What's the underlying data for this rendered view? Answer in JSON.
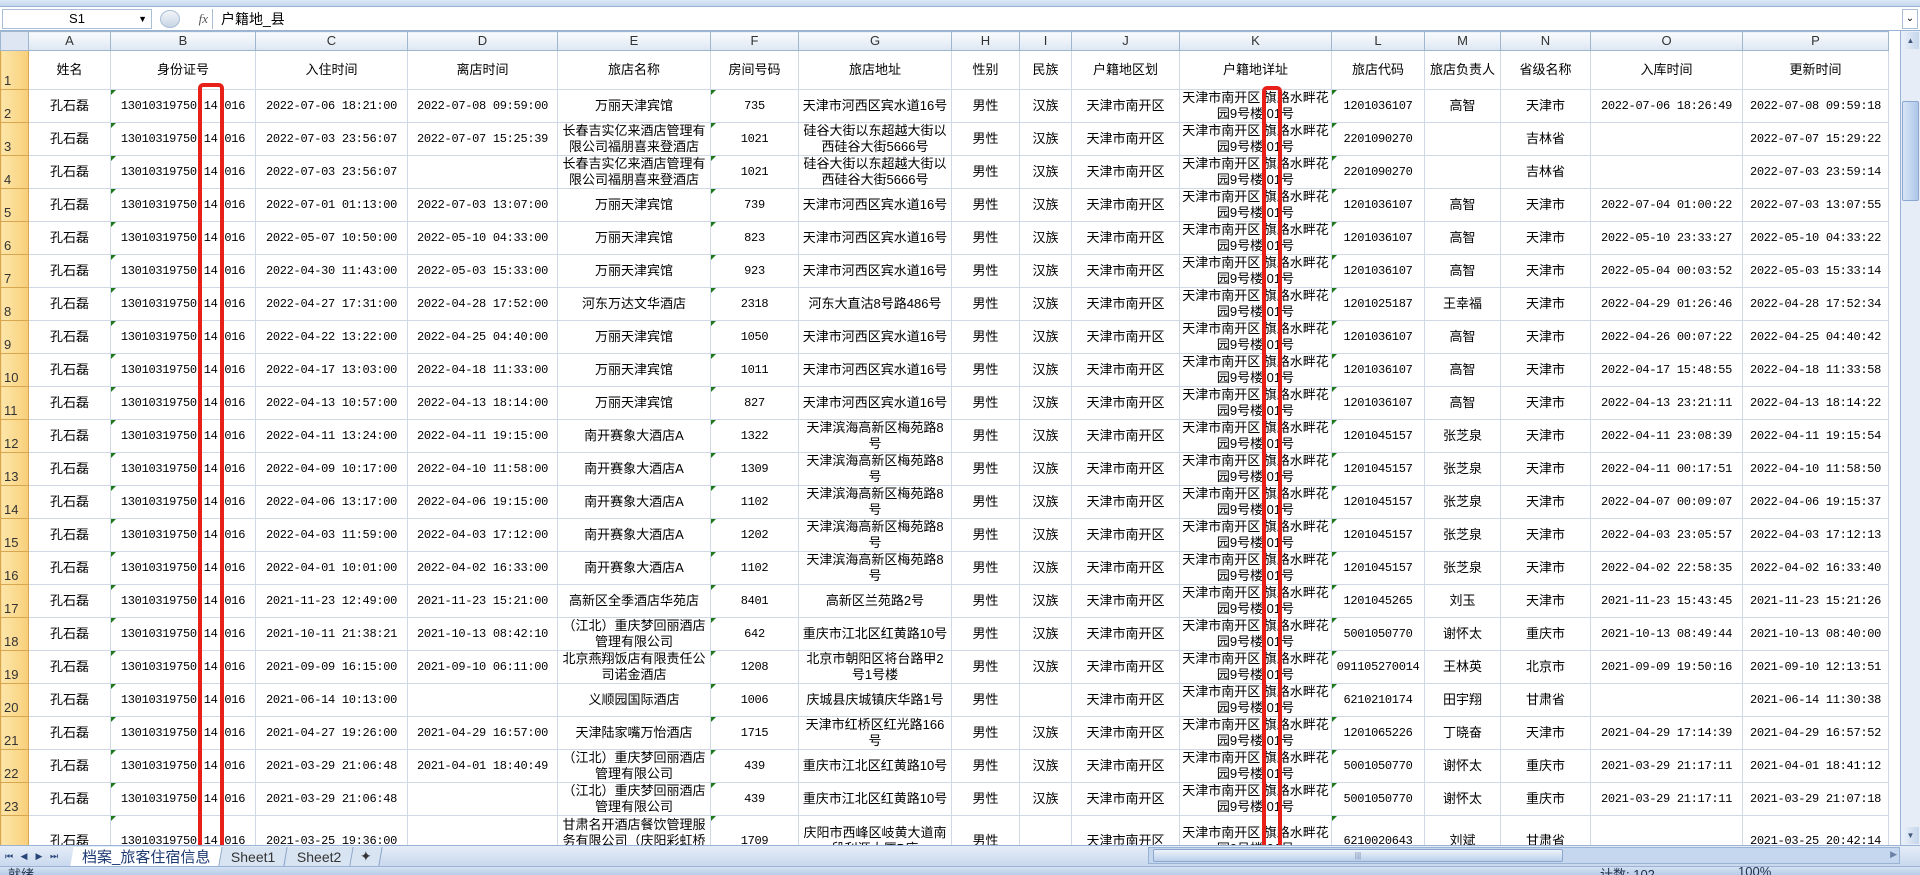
{
  "formula_bar": {
    "name_box": "S1",
    "fx_label": "fx",
    "formula": "户籍地_县"
  },
  "columns": [
    "A",
    "B",
    "C",
    "D",
    "E",
    "F",
    "G",
    "H",
    "I",
    "J",
    "K",
    "L",
    "M",
    "N",
    "O",
    "P"
  ],
  "headers": [
    "姓名",
    "身份证号",
    "入住时间",
    "离店时间",
    "旅店名称",
    "房间号码",
    "旅店地址",
    "性别",
    "民族",
    "户籍地区划",
    "户籍地详址",
    "旅店代码",
    "旅店负责人",
    "省级名称",
    "入库时间",
    "更新时间"
  ],
  "rows": [
    [
      "孔石磊",
      "13010319750 14 016",
      "2022-07-06 18:21:00",
      "2022-07-08 09:59:00",
      "万丽天津宾馆",
      "735",
      "天津市河西区宾水道16号",
      "男性",
      "汉族",
      "天津市南开区",
      "天津市南开区 旗路水畔花园9号楼 01号",
      "1201036107",
      "高智",
      "天津市",
      "2022-07-06 18:26:49",
      "2022-07-08 09:59:18"
    ],
    [
      "孔石磊",
      "13010319750 14 016",
      "2022-07-03 23:56:07",
      "2022-07-07 15:25:39",
      "长春吉实亿来酒店管理有限公司福朋喜来登酒店",
      "1021",
      "硅谷大街以东超越大街以西硅谷大街5666号",
      "男性",
      "汉族",
      "天津市南开区",
      "天津市南开区 旗路水畔花园9号楼 01号",
      "2201090270",
      "",
      "吉林省",
      "",
      "2022-07-07 15:29:22"
    ],
    [
      "孔石磊",
      "13010319750 14 016",
      "2022-07-03 23:56:07",
      "",
      "长春吉实亿来酒店管理有限公司福朋喜来登酒店",
      "1021",
      "硅谷大街以东超越大街以西硅谷大街5666号",
      "男性",
      "汉族",
      "天津市南开区",
      "天津市南开区 旗路水畔花园9号楼 01号",
      "2201090270",
      "",
      "吉林省",
      "",
      "2022-07-03 23:59:14"
    ],
    [
      "孔石磊",
      "13010319750 14 016",
      "2022-07-01 01:13:00",
      "2022-07-03 13:07:00",
      "万丽天津宾馆",
      "739",
      "天津市河西区宾水道16号",
      "男性",
      "汉族",
      "天津市南开区",
      "天津市南开区 旗路水畔花园9号楼 01号",
      "1201036107",
      "高智",
      "天津市",
      "2022-07-04 01:00:22",
      "2022-07-03 13:07:55"
    ],
    [
      "孔石磊",
      "13010319750 14 016",
      "2022-05-07 10:50:00",
      "2022-05-10 04:33:00",
      "万丽天津宾馆",
      "823",
      "天津市河西区宾水道16号",
      "男性",
      "汉族",
      "天津市南开区",
      "天津市南开区 旗路水畔花园9号楼 01号",
      "1201036107",
      "高智",
      "天津市",
      "2022-05-10 23:33:27",
      "2022-05-10 04:33:22"
    ],
    [
      "孔石磊",
      "13010319750 14 016",
      "2022-04-30 11:43:00",
      "2022-05-03 15:33:00",
      "万丽天津宾馆",
      "923",
      "天津市河西区宾水道16号",
      "男性",
      "汉族",
      "天津市南开区",
      "天津市南开区 旗路水畔花园9号楼 01号",
      "1201036107",
      "高智",
      "天津市",
      "2022-05-04 00:03:52",
      "2022-05-03 15:33:14"
    ],
    [
      "孔石磊",
      "13010319750 14 016",
      "2022-04-27 17:31:00",
      "2022-04-28 17:52:00",
      "河东万达文华酒店",
      "2318",
      "河东大直沽8号路486号",
      "男性",
      "汉族",
      "天津市南开区",
      "天津市南开区 旗路水畔花园9号楼 01号",
      "1201025187",
      "王幸福",
      "天津市",
      "2022-04-29 01:26:46",
      "2022-04-28 17:52:34"
    ],
    [
      "孔石磊",
      "13010319750 14 016",
      "2022-04-22 13:22:00",
      "2022-04-25 04:40:00",
      "万丽天津宾馆",
      "1050",
      "天津市河西区宾水道16号",
      "男性",
      "汉族",
      "天津市南开区",
      "天津市南开区 旗路水畔花园9号楼 01号",
      "1201036107",
      "高智",
      "天津市",
      "2022-04-26 00:07:22",
      "2022-04-25 04:40:42"
    ],
    [
      "孔石磊",
      "13010319750 14 016",
      "2022-04-17 13:03:00",
      "2022-04-18 11:33:00",
      "万丽天津宾馆",
      "1011",
      "天津市河西区宾水道16号",
      "男性",
      "汉族",
      "天津市南开区",
      "天津市南开区 旗路水畔花园9号楼 01号",
      "1201036107",
      "高智",
      "天津市",
      "2022-04-17 15:48:55",
      "2022-04-18 11:33:58"
    ],
    [
      "孔石磊",
      "13010319750 14 016",
      "2022-04-13 10:57:00",
      "2022-04-13 18:14:00",
      "万丽天津宾馆",
      "827",
      "天津市河西区宾水道16号",
      "男性",
      "汉族",
      "天津市南开区",
      "天津市南开区 旗路水畔花园9号楼 01号",
      "1201036107",
      "高智",
      "天津市",
      "2022-04-13 23:21:11",
      "2022-04-13 18:14:22"
    ],
    [
      "孔石磊",
      "13010319750 14 016",
      "2022-04-11 13:24:00",
      "2022-04-11 19:15:00",
      "南开赛象大酒店A",
      "1322",
      "天津滨海高新区梅苑路8号",
      "男性",
      "汉族",
      "天津市南开区",
      "天津市南开区 旗路水畔花园9号楼 01号",
      "1201045157",
      "张芝泉",
      "天津市",
      "2022-04-11 23:08:39",
      "2022-04-11 19:15:54"
    ],
    [
      "孔石磊",
      "13010319750 14 016",
      "2022-04-09 10:17:00",
      "2022-04-10 11:58:00",
      "南开赛象大酒店A",
      "1309",
      "天津滨海高新区梅苑路8号",
      "男性",
      "汉族",
      "天津市南开区",
      "天津市南开区 旗路水畔花园9号楼 01号",
      "1201045157",
      "张芝泉",
      "天津市",
      "2022-04-11 00:17:51",
      "2022-04-10 11:58:50"
    ],
    [
      "孔石磊",
      "13010319750 14 016",
      "2022-04-06 13:17:00",
      "2022-04-06 19:15:00",
      "南开赛象大酒店A",
      "1102",
      "天津滨海高新区梅苑路8号",
      "男性",
      "汉族",
      "天津市南开区",
      "天津市南开区 旗路水畔花园9号楼 01号",
      "1201045157",
      "张芝泉",
      "天津市",
      "2022-04-07 00:09:07",
      "2022-04-06 19:15:37"
    ],
    [
      "孔石磊",
      "13010319750 14 016",
      "2022-04-03 11:59:00",
      "2022-04-03 17:12:00",
      "南开赛象大酒店A",
      "1202",
      "天津滨海高新区梅苑路8号",
      "男性",
      "汉族",
      "天津市南开区",
      "天津市南开区 旗路水畔花园9号楼 01号",
      "1201045157",
      "张芝泉",
      "天津市",
      "2022-04-03 23:05:57",
      "2022-04-03 17:12:13"
    ],
    [
      "孔石磊",
      "13010319750 14 016",
      "2022-04-01 10:01:00",
      "2022-04-02 16:33:00",
      "南开赛象大酒店A",
      "1102",
      "天津滨海高新区梅苑路8号",
      "男性",
      "汉族",
      "天津市南开区",
      "天津市南开区 旗路水畔花园9号楼 01号",
      "1201045157",
      "张芝泉",
      "天津市",
      "2022-04-02 22:58:35",
      "2022-04-02 16:33:40"
    ],
    [
      "孔石磊",
      "13010319750 14 016",
      "2021-11-23 12:49:00",
      "2021-11-23 15:21:00",
      "高新区全季酒店华苑店",
      "8401",
      "高新区兰苑路2号",
      "男性",
      "汉族",
      "天津市南开区",
      "天津市南开区 旗路水畔花园9号楼 01号",
      "1201045265",
      "刘玉",
      "天津市",
      "2021-11-23 15:43:45",
      "2021-11-23 15:21:26"
    ],
    [
      "孔石磊",
      "13010319750 14 016",
      "2021-10-11 21:38:21",
      "2021-10-13 08:42:10",
      "（江北）重庆梦回丽酒店管理有限公司",
      "642",
      "重庆市江北区红黄路10号",
      "男性",
      "汉族",
      "天津市南开区",
      "天津市南开区 旗路水畔花园9号楼 01号",
      "5001050770",
      "谢怀太",
      "重庆市",
      "2021-10-13 08:49:44",
      "2021-10-13 08:40:00"
    ],
    [
      "孔石磊",
      "13010319750 14 016",
      "2021-09-09 16:15:00",
      "2021-09-10 06:11:00",
      "北京燕翔饭店有限责任公司诺金酒店",
      "1208",
      "北京市朝阳区将台路甲2号1号楼",
      "男性",
      "汉族",
      "天津市南开区",
      "天津市南开区 旗路水畔花园9号楼 01号",
      "091105270014",
      "王林英",
      "北京市",
      "2021-09-09 19:50:16",
      "2021-09-10 12:13:51"
    ],
    [
      "孔石磊",
      "13010319750 14 016",
      "2021-06-14 10:13:00",
      "",
      "义顺园国际酒店",
      "1006",
      "庆城县庆城镇庆华路1号",
      "男性",
      "",
      "天津市南开区",
      "天津市南开区 旗路水畔花园9号楼 01号",
      "6210210174",
      "田宇翔",
      "甘肃省",
      "",
      "2021-06-14 11:30:38"
    ],
    [
      "孔石磊",
      "13010319750 14 016",
      "2021-04-27 19:26:00",
      "2021-04-29 16:57:00",
      "天津陆家嘴万怡酒店",
      "1715",
      "天津市红桥区红光路166号",
      "男性",
      "汉族",
      "天津市南开区",
      "天津市南开区 旗路水畔花园9号楼 01号",
      "1201065226",
      "丁晓奋",
      "天津市",
      "2021-04-29 17:14:39",
      "2021-04-29 16:57:52"
    ],
    [
      "孔石磊",
      "13010319750 14 016",
      "2021-03-29 21:06:48",
      "2021-04-01 18:40:49",
      "（江北）重庆梦回丽酒店管理有限公司",
      "439",
      "重庆市江北区红黄路10号",
      "男性",
      "汉族",
      "天津市南开区",
      "天津市南开区 旗路水畔花园9号楼 01号",
      "5001050770",
      "谢怀太",
      "重庆市",
      "2021-03-29 21:17:11",
      "2021-04-01 18:41:12"
    ],
    [
      "孔石磊",
      "13010319750 14 016",
      "2021-03-29 21:06:48",
      "",
      "（江北）重庆梦回丽酒店管理有限公司",
      "439",
      "重庆市江北区红黄路10号",
      "男性",
      "汉族",
      "天津市南开区",
      "天津市南开区 旗路水畔花园9号楼 01号",
      "5001050770",
      "谢怀太",
      "重庆市",
      "2021-03-29 21:17:11",
      "2021-03-29 21:07:18"
    ],
    [
      "孔石磊",
      "13010319750 14 016",
      "2021-03-25 19:36:00",
      "",
      "甘肃名开酒店餐饮管理服务有限公司（庆阳彩虹桥希尔顿欢朋酒店）",
      "1709",
      "庆阳市西峰区岐黄大道南段利源大厦B座",
      "男性",
      "",
      "天津市南开区",
      "天津市南开区 旗路水畔花园9号楼 01号",
      "6210020643",
      "刘斌",
      "甘肃省",
      "",
      "2021-03-25 20:42:14"
    ]
  ],
  "sheet_tabs": [
    "档案_旅客住宿信息",
    "Sheet1",
    "Sheet2"
  ],
  "active_sheet": "档案_旅客住宿信息",
  "status_bar": {
    "ready": "就绪",
    "count": "计数: 102",
    "zoom": "100%"
  },
  "colors": {
    "highlight_box": "#e8201a",
    "row_header": "#f8cf7a",
    "text_marker": "#1c7a1c"
  }
}
